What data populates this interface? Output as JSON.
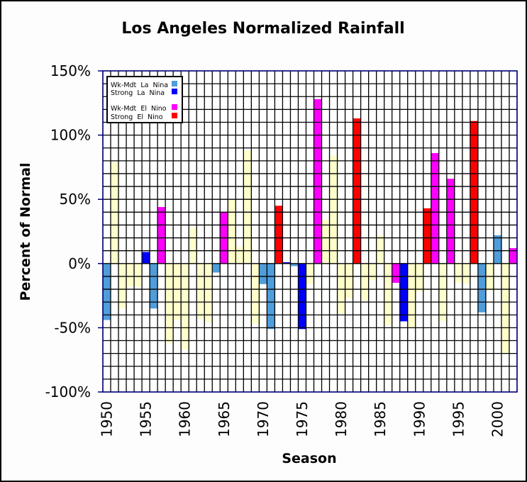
{
  "chart_data": {
    "type": "bar",
    "title": "Los Angeles Normalized Rainfall",
    "xlabel": "Season",
    "ylabel": "Percent of Normal",
    "ylim": [
      -100,
      150
    ],
    "y_ticks": [
      -100,
      -50,
      0,
      50,
      100,
      150
    ],
    "y_tick_labels": [
      "-100%",
      "-50%",
      "0%",
      "50%",
      "100%",
      "150%"
    ],
    "x_tick_labels": [
      "1950",
      "1955",
      "1960",
      "1965",
      "1970",
      "1975",
      "1980",
      "1985",
      "1990",
      "1995",
      "2000"
    ],
    "grid": true,
    "legend_position": "top-left",
    "legend": [
      {
        "key": "la_nina_weak",
        "label": "Wk-Mdt  La  Nina",
        "color": "#4F9DDB"
      },
      {
        "key": "la_nina_strong",
        "label": "Strong  La  Nina",
        "color": "#0000FF"
      },
      {
        "key": "el_nino_weak",
        "label": "Wk-Mdt  El  Nino",
        "color": "#FF00FF"
      },
      {
        "key": "el_nino_strong",
        "label": "Strong  El  Nino",
        "color": "#FF0000"
      }
    ],
    "neutral_color": "#FFFFCC",
    "x": [
      1950,
      1951,
      1952,
      1953,
      1954,
      1955,
      1956,
      1957,
      1958,
      1959,
      1960,
      1961,
      1962,
      1963,
      1964,
      1965,
      1966,
      1967,
      1968,
      1969,
      1970,
      1971,
      1972,
      1973,
      1974,
      1975,
      1976,
      1977,
      1978,
      1979,
      1980,
      1981,
      1982,
      1983,
      1984,
      1985,
      1986,
      1987,
      1988,
      1989,
      1990,
      1991,
      1992,
      1993,
      1994,
      1995,
      1996,
      1997,
      1998,
      1999,
      2000,
      2001,
      2002
    ],
    "values": [
      -44,
      79,
      -35,
      -18,
      -18,
      9,
      -35,
      44,
      -62,
      -44,
      -67,
      28,
      -43,
      -46,
      -7,
      40,
      50,
      13,
      88,
      -47,
      -16,
      -51,
      45,
      1,
      -2,
      -51,
      -16,
      128,
      34,
      84,
      -39,
      -27,
      113,
      -29,
      -13,
      22,
      -48,
      -15,
      -45,
      -50,
      -22,
      43,
      86,
      -45,
      66,
      -15,
      -16,
      111,
      -38,
      -21,
      22,
      -70,
      12
    ],
    "categories": [
      "la_nina_weak",
      "neutral",
      "neutral",
      "neutral",
      "neutral",
      "la_nina_strong",
      "la_nina_weak",
      "el_nino_weak",
      "neutral",
      "neutral",
      "neutral",
      "neutral",
      "neutral",
      "neutral",
      "la_nina_weak",
      "el_nino_weak",
      "neutral",
      "neutral",
      "neutral",
      "neutral",
      "la_nina_weak",
      "la_nina_weak",
      "el_nino_strong",
      "la_nina_strong",
      "la_nina_weak",
      "la_nina_strong",
      "neutral",
      "el_nino_weak",
      "neutral",
      "neutral",
      "neutral",
      "neutral",
      "el_nino_strong",
      "neutral",
      "neutral",
      "neutral",
      "neutral",
      "el_nino_weak",
      "la_nina_strong",
      "neutral",
      "neutral",
      "el_nino_strong",
      "el_nino_weak",
      "neutral",
      "el_nino_weak",
      "neutral",
      "neutral",
      "el_nino_strong",
      "la_nina_weak",
      "neutral",
      "la_nina_weak",
      "neutral",
      "el_nino_weak"
    ]
  }
}
